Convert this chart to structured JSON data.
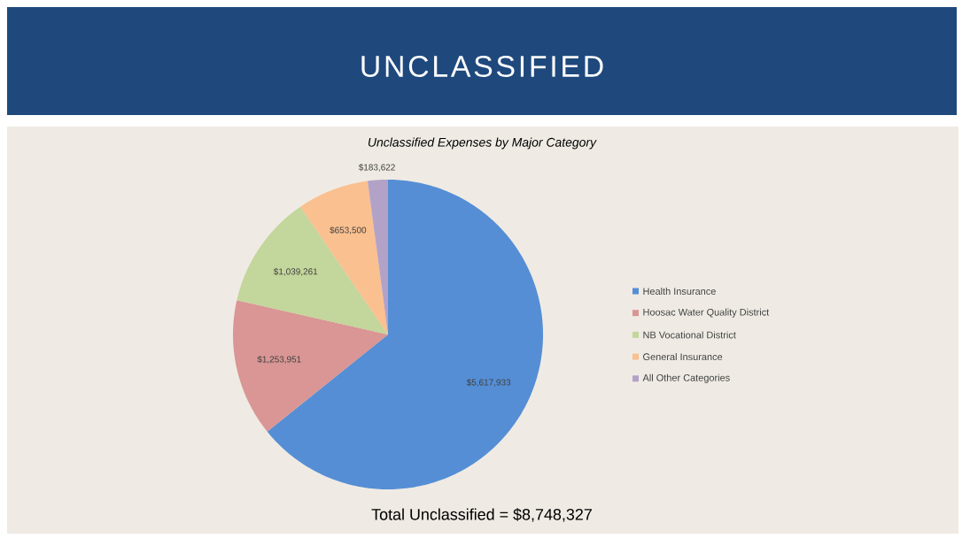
{
  "chart_data": {
    "type": "pie",
    "title": "UNCLASSIFIED",
    "subtitle": "Unclassified Expenses by Major Category",
    "categories": [
      "Health Insurance",
      "Hoosac Water Quality District",
      "NB Vocational District",
      "General Insurance",
      "All Other Categories"
    ],
    "values": [
      5617933,
      1253951,
      1039261,
      653500,
      183622
    ],
    "colors": [
      "#558ed5",
      "#d99694",
      "#c3d69b",
      "#fac090",
      "#b3a2c7"
    ],
    "value_labels": [
      "$5,617,933",
      "$1,253,951",
      "$1,039,261",
      "$653,500",
      "$183,622"
    ],
    "legend": "right",
    "annotations": [
      "Total Unclassified = $8,748,327"
    ]
  }
}
